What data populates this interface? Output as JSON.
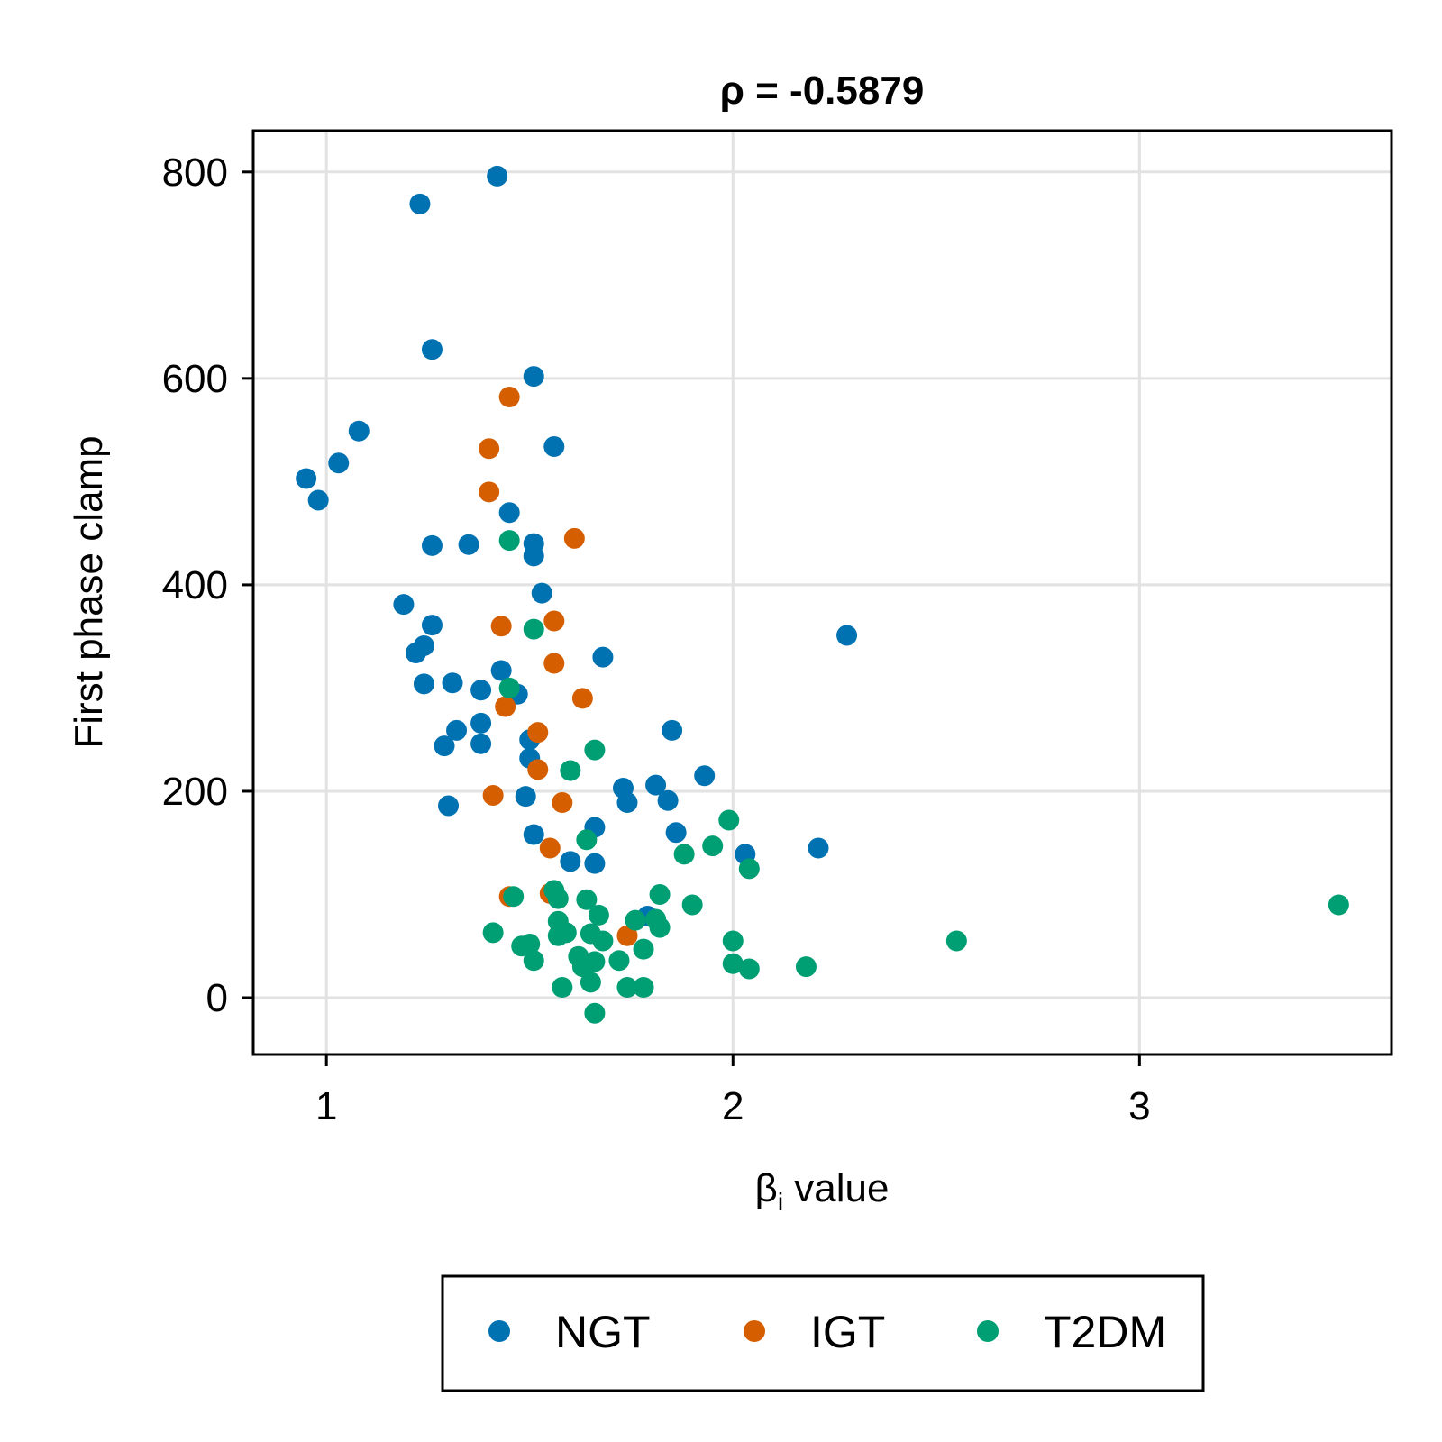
{
  "chart_data": {
    "type": "scatter",
    "title": "ρ = -0.5879",
    "xlabel_main": "β",
    "xlabel_sub": "i",
    "xlabel_rest": " value",
    "ylabel": "First phase clamp",
    "xlim": [
      0.82,
      3.62
    ],
    "ylim": [
      -55,
      840
    ],
    "xticks": [
      1,
      2,
      3
    ],
    "yticks": [
      0,
      200,
      400,
      600,
      800
    ],
    "grid": true,
    "legend_position": "bottom",
    "series": [
      {
        "name": "NGT",
        "color": "#0072b2",
        "points": [
          [
            1.42,
            796
          ],
          [
            1.23,
            769
          ],
          [
            1.26,
            628
          ],
          [
            1.51,
            602
          ],
          [
            1.08,
            549
          ],
          [
            1.03,
            518
          ],
          [
            0.95,
            503
          ],
          [
            0.98,
            482
          ],
          [
            1.56,
            534
          ],
          [
            1.45,
            470
          ],
          [
            1.26,
            438
          ],
          [
            1.35,
            439
          ],
          [
            1.51,
            440
          ],
          [
            1.51,
            428
          ],
          [
            1.53,
            392
          ],
          [
            1.19,
            381
          ],
          [
            1.26,
            361
          ],
          [
            1.24,
            341
          ],
          [
            1.22,
            334
          ],
          [
            1.43,
            317
          ],
          [
            1.68,
            330
          ],
          [
            1.24,
            304
          ],
          [
            1.31,
            305
          ],
          [
            1.38,
            298
          ],
          [
            1.47,
            294
          ],
          [
            2.28,
            351
          ],
          [
            1.38,
            266
          ],
          [
            1.32,
            259
          ],
          [
            1.38,
            246
          ],
          [
            1.29,
            244
          ],
          [
            1.5,
            250
          ],
          [
            1.5,
            232
          ],
          [
            1.49,
            195
          ],
          [
            1.3,
            186
          ],
          [
            1.73,
            203
          ],
          [
            1.74,
            189
          ],
          [
            1.81,
            206
          ],
          [
            1.84,
            191
          ],
          [
            1.85,
            259
          ],
          [
            1.93,
            215
          ],
          [
            1.51,
            158
          ],
          [
            1.66,
            165
          ],
          [
            1.6,
            132
          ],
          [
            1.66,
            130
          ],
          [
            1.86,
            160
          ],
          [
            2.03,
            139
          ],
          [
            2.21,
            145
          ],
          [
            1.79,
            79
          ]
        ]
      },
      {
        "name": "IGT",
        "color": "#d55e00",
        "points": [
          [
            1.45,
            582
          ],
          [
            1.4,
            532
          ],
          [
            1.4,
            490
          ],
          [
            1.61,
            445
          ],
          [
            1.43,
            360
          ],
          [
            1.56,
            365
          ],
          [
            1.56,
            324
          ],
          [
            1.63,
            290
          ],
          [
            1.44,
            282
          ],
          [
            1.52,
            257
          ],
          [
            1.52,
            221
          ],
          [
            1.41,
            196
          ],
          [
            1.58,
            189
          ],
          [
            1.55,
            145
          ],
          [
            1.55,
            101
          ],
          [
            1.45,
            98
          ],
          [
            1.74,
            60
          ]
        ]
      },
      {
        "name": "T2DM",
        "color": "#009e73",
        "points": [
          [
            1.45,
            443
          ],
          [
            1.51,
            357
          ],
          [
            1.45,
            300
          ],
          [
            1.66,
            240
          ],
          [
            1.6,
            220
          ],
          [
            1.99,
            172
          ],
          [
            1.95,
            147
          ],
          [
            1.64,
            153
          ],
          [
            1.88,
            139
          ],
          [
            2.04,
            125
          ],
          [
            1.56,
            104
          ],
          [
            1.57,
            96
          ],
          [
            1.64,
            95
          ],
          [
            1.46,
            98
          ],
          [
            1.82,
            100
          ],
          [
            1.9,
            90
          ],
          [
            3.49,
            90
          ],
          [
            1.67,
            80
          ],
          [
            1.76,
            75
          ],
          [
            1.81,
            76
          ],
          [
            1.82,
            68
          ],
          [
            1.57,
            74
          ],
          [
            1.57,
            60
          ],
          [
            1.59,
            63
          ],
          [
            1.41,
            63
          ],
          [
            1.65,
            62
          ],
          [
            1.68,
            55
          ],
          [
            1.5,
            52
          ],
          [
            1.48,
            50
          ],
          [
            1.62,
            40
          ],
          [
            1.66,
            35
          ],
          [
            1.72,
            36
          ],
          [
            1.51,
            36
          ],
          [
            1.63,
            30
          ],
          [
            1.78,
            47
          ],
          [
            2.55,
            55
          ],
          [
            2.0,
            55
          ],
          [
            2.0,
            33
          ],
          [
            2.04,
            28
          ],
          [
            2.18,
            30
          ],
          [
            1.58,
            10
          ],
          [
            1.65,
            15
          ],
          [
            1.74,
            10
          ],
          [
            1.78,
            10
          ],
          [
            1.66,
            -15
          ]
        ]
      }
    ]
  }
}
